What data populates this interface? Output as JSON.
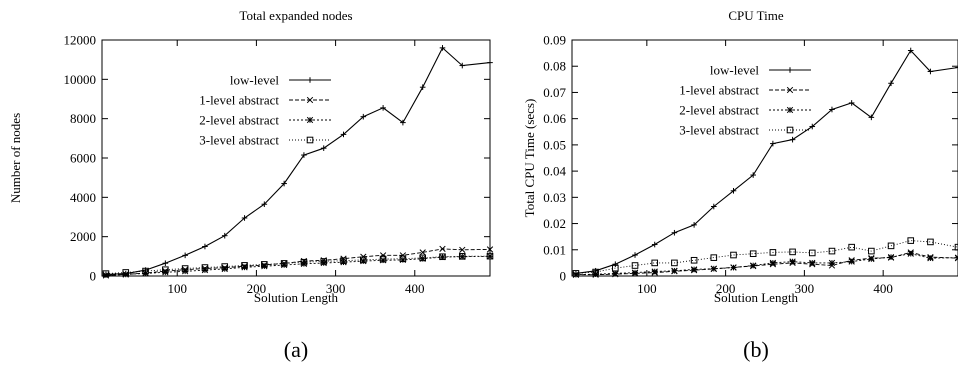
{
  "chart_data": [
    {
      "type": "line",
      "subfigure_label": "(a)",
      "title": "Total expanded nodes",
      "xlabel": "Solution Length",
      "ylabel": "Number of nodes",
      "xlim": [
        5,
        495
      ],
      "ylim": [
        0,
        12000
      ],
      "xticks": [
        "100",
        "200",
        "300",
        "400"
      ],
      "yticks": [
        "0",
        "2000",
        "4000",
        "6000",
        "8000",
        "10000",
        "12000"
      ],
      "grid": false,
      "legend_position": "top-left",
      "x": [
        10,
        35,
        60,
        85,
        110,
        135,
        160,
        185,
        210,
        235,
        260,
        285,
        310,
        335,
        360,
        385,
        410,
        435,
        460,
        495
      ],
      "series": [
        {
          "name": "low-level",
          "marker": "plus",
          "values": [
            80,
            120,
            300,
            650,
            1050,
            1500,
            2050,
            2950,
            3650,
            4700,
            6150,
            6500,
            7200,
            8100,
            8550,
            7800,
            9600,
            11600,
            10700,
            10850
          ]
        },
        {
          "name": "1-level abstract",
          "marker": "cross",
          "values": [
            30,
            80,
            150,
            250,
            320,
            380,
            420,
            500,
            560,
            640,
            760,
            800,
            880,
            980,
            1050,
            1050,
            1200,
            1380,
            1330,
            1350
          ]
        },
        {
          "name": "2-level abstract",
          "marker": "star",
          "values": [
            40,
            80,
            130,
            190,
            240,
            300,
            360,
            440,
            500,
            560,
            620,
            660,
            700,
            760,
            800,
            820,
            880,
            960,
            980,
            1000
          ]
        },
        {
          "name": "3-level abstract",
          "marker": "square",
          "values": [
            120,
            180,
            250,
            320,
            380,
            430,
            480,
            540,
            590,
            640,
            700,
            740,
            780,
            820,
            860,
            880,
            920,
            980,
            1000,
            1010
          ]
        }
      ]
    },
    {
      "type": "line",
      "subfigure_label": "(b)",
      "title": "CPU Time",
      "xlabel": "Solution Length",
      "ylabel": "Total CPU Time (secs)",
      "xlim": [
        5,
        495
      ],
      "ylim": [
        0,
        0.09
      ],
      "xticks": [
        "100",
        "200",
        "300",
        "400"
      ],
      "yticks": [
        "0",
        "0.01",
        "0.02",
        "0.03",
        "0.04",
        "0.05",
        "0.06",
        "0.07",
        "0.08",
        "0.09"
      ],
      "grid": false,
      "legend_position": "top-left",
      "x": [
        10,
        35,
        60,
        85,
        110,
        135,
        160,
        185,
        210,
        235,
        260,
        285,
        310,
        335,
        360,
        385,
        410,
        435,
        460,
        495
      ],
      "series": [
        {
          "name": "low-level",
          "marker": "plus",
          "values": [
            0.001,
            0.002,
            0.0045,
            0.008,
            0.012,
            0.0165,
            0.0195,
            0.0265,
            0.0325,
            0.0385,
            0.0505,
            0.052,
            0.057,
            0.0635,
            0.066,
            0.0605,
            0.0735,
            0.086,
            0.078,
            0.0795
          ]
        },
        {
          "name": "1-level abstract",
          "marker": "cross",
          "values": [
            0.0005,
            0.0005,
            0.0007,
            0.001,
            0.0013,
            0.0018,
            0.0022,
            0.0027,
            0.0033,
            0.0038,
            0.0045,
            0.005,
            0.0045,
            0.004,
            0.006,
            0.0068,
            0.007,
            0.009,
            0.0072,
            0.0068
          ]
        },
        {
          "name": "2-level abstract",
          "marker": "star",
          "values": [
            0.0005,
            0.0007,
            0.001,
            0.0013,
            0.0017,
            0.002,
            0.0025,
            0.0028,
            0.0032,
            0.004,
            0.005,
            0.0055,
            0.005,
            0.005,
            0.0055,
            0.0065,
            0.0072,
            0.0085,
            0.0068,
            0.007
          ]
        },
        {
          "name": "3-level abstract",
          "marker": "square",
          "values": [
            0.001,
            0.0015,
            0.003,
            0.004,
            0.005,
            0.005,
            0.006,
            0.007,
            0.008,
            0.0085,
            0.009,
            0.0092,
            0.0088,
            0.0095,
            0.011,
            0.0095,
            0.0115,
            0.0135,
            0.013,
            0.011
          ]
        }
      ]
    }
  ]
}
